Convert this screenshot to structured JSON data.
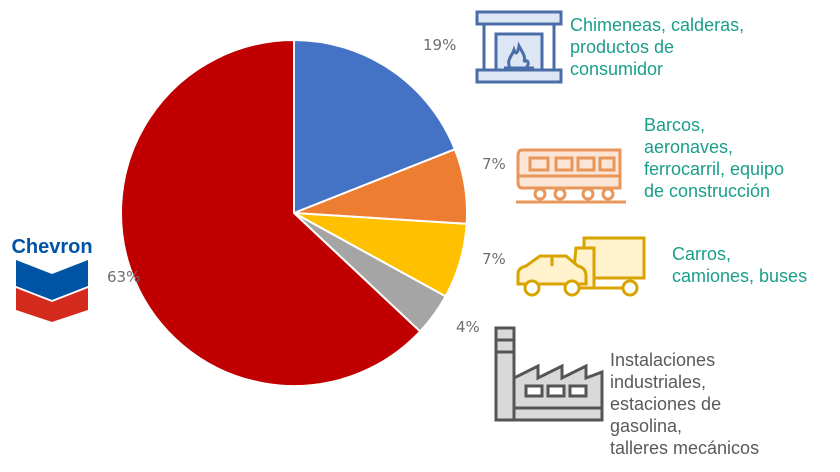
{
  "chart_data": {
    "type": "pie",
    "title": "",
    "slices": [
      {
        "label": "Chimeneas, calderas, productos de consumidor",
        "value": 19,
        "value_label": "19%",
        "color": "#4472c4",
        "icon": "fireplace-icon",
        "text_color": "#1a9e8a"
      },
      {
        "label": "Barcos, aeronaves, ferrocarril, equipo de construcción",
        "value": 7,
        "value_label": "7%",
        "color": "#ed7d31",
        "icon": "train-icon",
        "text_color": "#1a9e8a"
      },
      {
        "label": "Carros, camiones, buses",
        "value": 7,
        "value_label": "7%",
        "color": "#ffc000",
        "icon": "car-truck-icon",
        "text_color": "#1a9e8a"
      },
      {
        "label": "Instalaciones industriales, estaciones de gasolina, talleres mecánicos",
        "value": 4,
        "value_label": "4%",
        "color": "#a5a5a5",
        "icon": "factory-icon",
        "text_color": "#5a5a5a"
      },
      {
        "label": "Chevron",
        "value": 63,
        "value_label": "63%",
        "color": "#c00000",
        "icon": "chevron-logo",
        "text_color": "#6f6f6f"
      }
    ],
    "start_angle_deg": 0,
    "direction": "clockwise"
  },
  "labels": {
    "fireplace": [
      "Chimeneas, calderas,",
      "productos de",
      "consumidor"
    ],
    "transport": [
      "Barcos,",
      "aeronaves,",
      "ferrocarril, equipo",
      "de construcción"
    ],
    "cars": [
      "Carros,",
      "camiones, buses"
    ],
    "industry": [
      "Instalaciones",
      "industriales,",
      "estaciones de",
      "gasolina,",
      "talleres mecánicos"
    ]
  },
  "brand": {
    "name": "Chevron"
  }
}
